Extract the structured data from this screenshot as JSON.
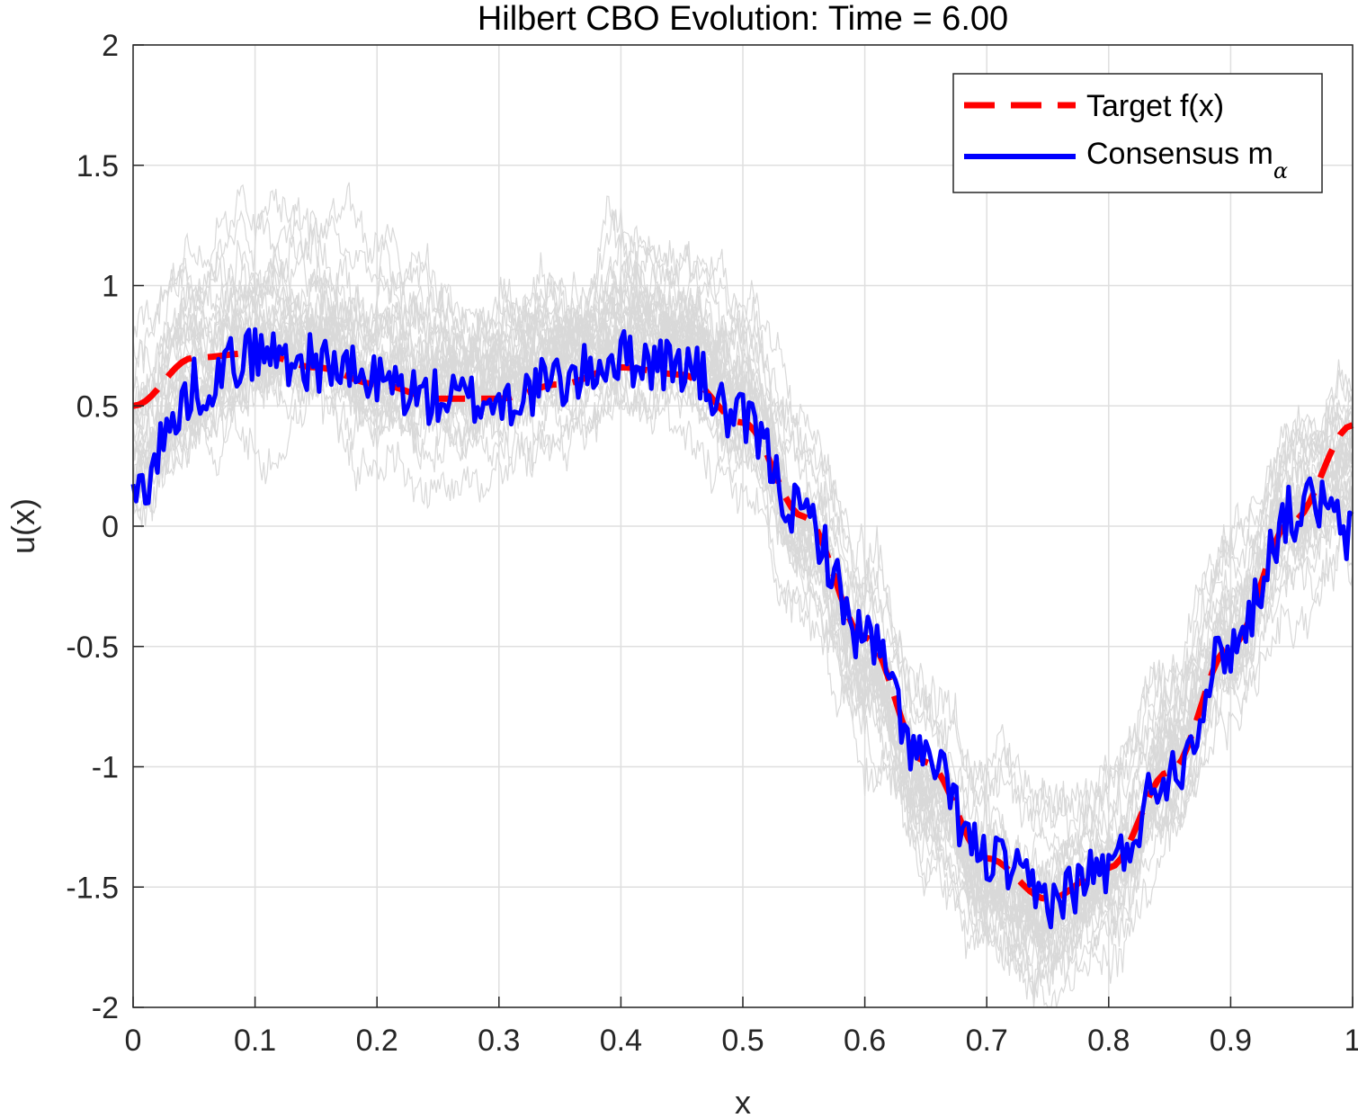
{
  "chart_data": {
    "type": "line",
    "title": "Hilbert CBO Evolution: Time = 6.00",
    "xlabel": "x",
    "ylabel": "u(x)",
    "xlim": [
      0,
      1
    ],
    "ylim": [
      -2,
      2
    ],
    "xticks": [
      0,
      0.1,
      0.2,
      0.3,
      0.4,
      0.5,
      0.6,
      0.7,
      0.8,
      0.9,
      1
    ],
    "xtick_labels": [
      "0",
      "0.1",
      "0.2",
      "0.3",
      "0.4",
      "0.5",
      "0.6",
      "0.7",
      "0.8",
      "0.9",
      "1"
    ],
    "yticks": [
      2,
      1.5,
      1,
      0.5,
      0,
      -0.5,
      -1,
      -1.5,
      -2
    ],
    "ytick_labels": [
      "2",
      "1.5",
      "1",
      "0.5",
      "0",
      "-0.5",
      "-1",
      "-1.5",
      "-2"
    ],
    "grid": true,
    "legend_position": "top-right",
    "series": [
      {
        "name": "Target f(x)",
        "color": "#ff0000",
        "style": "dashed",
        "x": [
          0,
          0.05,
          0.1,
          0.15,
          0.2,
          0.25,
          0.3,
          0.35,
          0.4,
          0.45,
          0.5,
          0.55,
          0.6,
          0.65,
          0.7,
          0.75,
          0.8,
          0.85,
          0.9,
          0.95,
          1
        ],
        "y": [
          0.5,
          0.7,
          0.72,
          0.66,
          0.59,
          0.53,
          0.53,
          0.59,
          0.66,
          0.63,
          0.43,
          0.04,
          -0.46,
          -0.98,
          -1.38,
          -1.55,
          -1.42,
          -1.02,
          -0.5,
          0.02,
          0.42
        ]
      },
      {
        "name": "Consensus m",
        "name_subscript": "α",
        "color": "#0000ff",
        "style": "solid",
        "noise_amplitude": 0.12,
        "x": [
          0,
          0.01,
          0.03,
          0.05,
          0.1,
          0.15,
          0.2,
          0.25,
          0.3,
          0.35,
          0.4,
          0.45,
          0.5,
          0.55,
          0.6,
          0.65,
          0.7,
          0.75,
          0.8,
          0.85,
          0.9,
          0.95,
          0.97,
          1
        ],
        "y": [
          0.1,
          0.2,
          0.4,
          0.58,
          0.72,
          0.68,
          0.6,
          0.53,
          0.52,
          0.6,
          0.7,
          0.67,
          0.43,
          0.04,
          -0.46,
          -0.98,
          -1.38,
          -1.55,
          -1.42,
          -1.02,
          -0.5,
          0.05,
          0.1,
          -0.05
        ]
      },
      {
        "name": "",
        "color": "#d9d9d9",
        "style": "particles",
        "particle_count": 30,
        "spread": 0.35,
        "x": [
          0,
          0.05,
          0.1,
          0.15,
          0.2,
          0.25,
          0.3,
          0.35,
          0.4,
          0.45,
          0.5,
          0.55,
          0.6,
          0.65,
          0.7,
          0.75,
          0.8,
          0.85,
          0.9,
          0.95,
          1
        ],
        "y": [
          0.3,
          0.65,
          0.78,
          0.78,
          0.68,
          0.62,
          0.62,
          0.72,
          0.82,
          0.8,
          0.55,
          0.0,
          -0.55,
          -1.1,
          -1.5,
          -1.65,
          -1.5,
          -1.05,
          -0.5,
          0.0,
          0.2
        ]
      }
    ]
  }
}
